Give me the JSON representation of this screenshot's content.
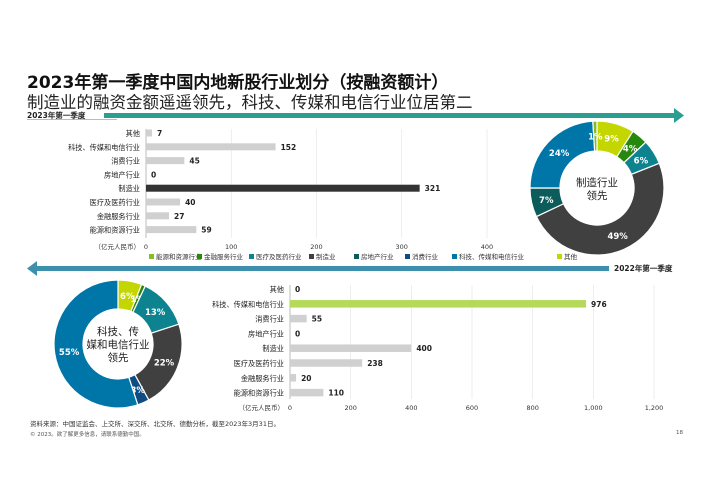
{
  "header": {
    "title": "2023年第一季度中国内地新股行业划分（按融资额计）",
    "subtitle": "制造业的融资金额遥遥领先，科技、传媒和电信行业位居第二"
  },
  "footer": {
    "source": "资料来源：中国证监会、上交所、深交所、北交所、德勤分析，截至2023年3月31日。",
    "copyright": "© 2023。欲了解更多信息，请联系德勤中国。",
    "page_number": "18"
  },
  "legend": {
    "items": [
      {
        "label": "能源和资源行业",
        "color": "#86BC25"
      },
      {
        "label": "金融服务行业",
        "color": "#26890D"
      },
      {
        "label": "医疗及医药行业",
        "color": "#0D8390"
      },
      {
        "label": "制造业",
        "color": "#404040"
      },
      {
        "label": "房地产行业",
        "color": "#0D5C5C"
      },
      {
        "label": "消费行业",
        "color": "#0F4C81"
      },
      {
        "label": "科技、传媒和电信行业",
        "color": "#0076A8"
      },
      {
        "label": "其他",
        "color": "#C4D600"
      }
    ]
  },
  "chart_data": [
    {
      "type": "bar",
      "orientation": "horizontal",
      "period_label": "2023年第一季度",
      "categories": [
        "其他",
        "科技、传媒和电信行业",
        "消费行业",
        "房地产行业",
        "制造业",
        "医疗及医药行业",
        "金融服务行业",
        "能源和资源行业"
      ],
      "values": [
        7,
        152,
        45,
        0,
        321,
        40,
        27,
        59
      ],
      "highlight": "制造业",
      "highlight_color": "#333333",
      "bar_color": "#D0D0D0",
      "xlim": [
        0,
        400
      ],
      "xticks": [
        0,
        100,
        200,
        300,
        400
      ],
      "xticklabels": [
        "0",
        "100",
        "200",
        "300",
        "400"
      ],
      "xlabel": "（亿元人民币）"
    },
    {
      "type": "pie",
      "donut": true,
      "center_label": "制造行业领先",
      "slices": [
        {
          "label": "其他",
          "value": 9,
          "text": "9%"
        },
        {
          "label": "金融服务行业",
          "value": 4,
          "text": "4%"
        },
        {
          "label": "医疗及医药行业",
          "value": 6,
          "text": "6%"
        },
        {
          "label": "制造业",
          "value": 49,
          "text": "49%"
        },
        {
          "label": "房地产行业",
          "value": 7,
          "text": "7%"
        },
        {
          "label": "科技、传媒和电信行业",
          "value": 24,
          "text": "24%"
        },
        {
          "label": "能源和资源行业",
          "value": 1,
          "text": "1%"
        }
      ]
    },
    {
      "type": "bar",
      "orientation": "horizontal",
      "period_label": "2022年第一季度",
      "categories": [
        "其他",
        "科技、传媒和电信行业",
        "消费行业",
        "房地产行业",
        "制造业",
        "医疗及医药行业",
        "金融服务行业",
        "能源和资源行业"
      ],
      "values": [
        0,
        976,
        55,
        0,
        400,
        238,
        20,
        110
      ],
      "highlight": "科技、传媒和电信行业",
      "highlight_color": "#B5DA5A",
      "bar_color": "#D0D0D0",
      "xlim": [
        0,
        1200
      ],
      "xticks": [
        0,
        200,
        400,
        600,
        800,
        1000,
        1200
      ],
      "xticklabels": [
        "0",
        "200",
        "400",
        "600",
        "800",
        "1,000",
        "1,200"
      ],
      "xlabel": "（亿元人民币）"
    },
    {
      "type": "pie",
      "donut": true,
      "center_label": "科技、传媒和电信行业领先",
      "slices": [
        {
          "label": "其他",
          "value": 6,
          "text": "6%"
        },
        {
          "label": "金融服务行业",
          "value": 1,
          "text": "1%"
        },
        {
          "label": "医疗及医药行业",
          "value": 13,
          "text": "13%"
        },
        {
          "label": "制造业",
          "value": 22,
          "text": "22%"
        },
        {
          "label": "消费行业",
          "value": 3,
          "text": "3%"
        },
        {
          "label": "科技、传媒和电信行业",
          "value": 55,
          "text": "55%"
        }
      ]
    }
  ]
}
